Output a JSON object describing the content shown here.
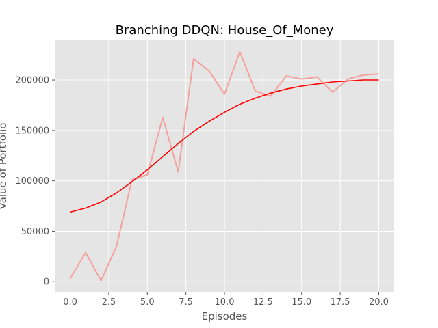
{
  "chart_data": {
    "type": "line",
    "title": "Branching DDQN: House_Of_Money",
    "xlabel": "Episodes",
    "ylabel": "Value of Portfolio",
    "xlim": [
      -1,
      21
    ],
    "ylim": [
      -10000,
      240000
    ],
    "xticks": [
      0,
      2.5,
      5,
      7.5,
      10,
      12.5,
      15,
      17.5,
      20
    ],
    "xtick_labels": [
      "0.0",
      "2.5",
      "5.0",
      "7.5",
      "10.0",
      "12.5",
      "15.0",
      "17.5",
      "20.0"
    ],
    "yticks": [
      0,
      50000,
      100000,
      150000,
      200000
    ],
    "ytick_labels": [
      "0",
      "50000",
      "100000",
      "150000",
      "200000"
    ],
    "grid": true,
    "x": [
      0,
      1,
      2,
      3,
      4,
      5,
      6,
      7,
      8,
      9,
      10,
      11,
      12,
      13,
      14,
      15,
      16,
      17,
      18,
      19,
      20
    ],
    "series": [
      {
        "color": "#f4a09c",
        "values": [
          3000,
          29000,
          1000,
          35000,
          101000,
          106000,
          163000,
          109000,
          221000,
          209000,
          186000,
          228000,
          189000,
          184000,
          204000,
          201000,
          203000,
          188000,
          201000,
          205000,
          206000
        ]
      },
      {
        "color": "#ff0000",
        "values": [
          69000,
          73000,
          79000,
          88000,
          99000,
          111000,
          124000,
          137000,
          149000,
          159000,
          168000,
          176000,
          182000,
          187000,
          191000,
          194000,
          196000,
          198000,
          199000,
          200000,
          200000
        ]
      }
    ]
  },
  "colors": {
    "plot_background": "#e5e5e5",
    "grid": "#ffffff"
  }
}
